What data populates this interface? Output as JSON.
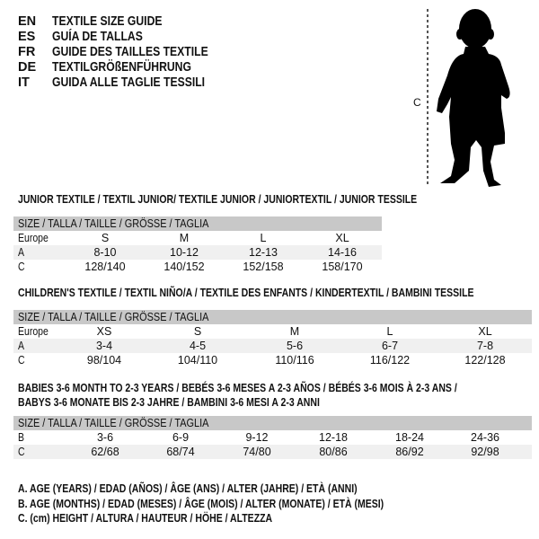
{
  "header": {
    "languages": [
      {
        "code": "EN",
        "title": "TEXTILE SIZE GUIDE"
      },
      {
        "code": "ES",
        "title": "GUÍA DE TALLAS"
      },
      {
        "code": "FR",
        "title": "GUIDE DES TAILLES TEXTILE"
      },
      {
        "code": "DE",
        "title": "TEXTILGRÖßENFÜHRUNG"
      },
      {
        "code": "IT",
        "title": "GUIDA ALLE TAGLIE TESSILI"
      }
    ]
  },
  "figure": {
    "measure_label": "C",
    "icon": "child-silhouette"
  },
  "tables": [
    {
      "title": "JUNIOR TEXTILE / TEXTIL JUNIOR/ TEXTILE JUNIOR / JUNIORTEXTIL / JUNIOR TESSILE",
      "header": "SIZE / TALLA / TAILLE / GRÖSSE / TAGLIA",
      "rows": [
        {
          "label": "Europe",
          "values": [
            "S",
            "M",
            "L",
            "XL"
          ]
        },
        {
          "label": "A",
          "values": [
            "8-10",
            "10-12",
            "12-13",
            "14-16"
          ]
        },
        {
          "label": "C",
          "values": [
            "128/140",
            "140/152",
            "152/158",
            "158/170"
          ]
        }
      ]
    },
    {
      "title": "CHILDREN'S TEXTILE / TEXTIL NIÑO/A / TEXTILE DES ENFANTS / KINDERTEXTIL / BAMBINI TESSILE",
      "header": "SIZE / TALLA / TAILLE / GRÖSSE / TAGLIA",
      "rows": [
        {
          "label": "Europe",
          "values": [
            "XS",
            "S",
            "M",
            "L",
            "XL"
          ]
        },
        {
          "label": "A",
          "values": [
            "3-4",
            "4-5",
            "5-6",
            "6-7",
            "7-8"
          ]
        },
        {
          "label": "C",
          "values": [
            "98/104",
            "104/110",
            "110/116",
            "116/122",
            "122/128"
          ]
        }
      ]
    },
    {
      "title": "BABIES 3-6 MONTH TO 2-3 YEARS / BEBÉS 3-6 MESES A 2-3 AÑOS / BÉBÉS 3-6 MOIS À 2-3 ANS /",
      "title2": "BABYS 3-6 MONATE BIS 2-3 JAHRE / BAMBINI 3-6 MESI A 2-3 ANNI",
      "header": "SIZE / TALLA / TAILLE / GRÖSSE / TAGLIA",
      "rows": [
        {
          "label": "B",
          "values": [
            "3-6",
            "6-9",
            "9-12",
            "12-18",
            "18-24",
            "24-36"
          ]
        },
        {
          "label": "C",
          "values": [
            "62/68",
            "68/74",
            "74/80",
            "80/86",
            "86/92",
            "92/98"
          ]
        }
      ]
    }
  ],
  "legend": [
    "A. AGE (YEARS) / EDAD (AÑOS) / ÂGE (ANS) / ALTER (JAHRE) / ETÀ (ANNI)",
    "B. AGE (MONTHS) / EDAD (MESES) / ÂGE (MOIS) / ALTER (MONATE) / ETÀ (MESI)",
    "C. (cm) HEIGHT / ALTURA / HAUTEUR / HÖHE / ALTEZZA"
  ],
  "colors": {
    "header_bg": "#c8c8c8",
    "row_shade": "#f0f0f0",
    "text": "#111111"
  }
}
